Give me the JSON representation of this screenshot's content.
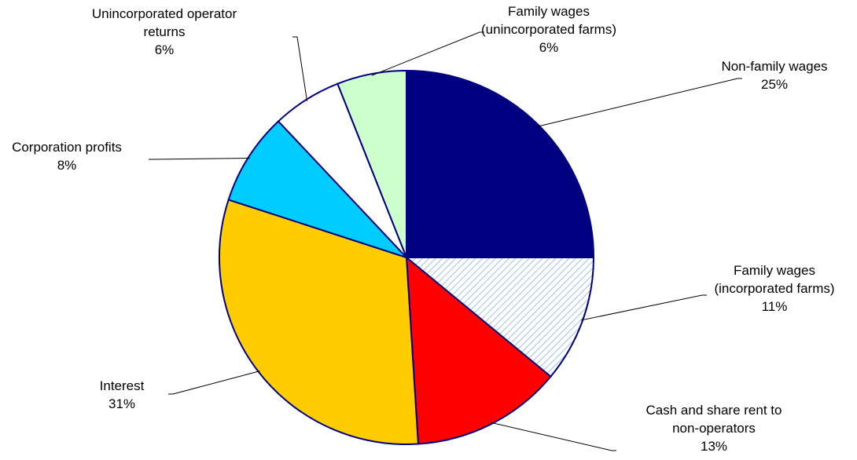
{
  "chart_data": {
    "type": "pie",
    "title": "",
    "start_angle_deg": 0,
    "direction": "clockwise",
    "slices": [
      {
        "label_lines": [
          "Non-family wages"
        ],
        "percent_label": "25%",
        "value": 25,
        "color": "#000080",
        "pattern": "solid"
      },
      {
        "label_lines": [
          "Family wages",
          "(incorporated farms)"
        ],
        "percent_label": "11%",
        "value": 11,
        "color": "#ffffff",
        "pattern_color": "#9ec2e6",
        "pattern": "diagonal-hatch"
      },
      {
        "label_lines": [
          "Cash and share rent to",
          "non-operators"
        ],
        "percent_label": "13%",
        "value": 13,
        "color": "#ff0000",
        "pattern": "solid"
      },
      {
        "label_lines": [
          "Interest"
        ],
        "percent_label": "31%",
        "value": 31,
        "color": "#ffcc00",
        "pattern": "solid"
      },
      {
        "label_lines": [
          "Corporation profits"
        ],
        "percent_label": "8%",
        "value": 8,
        "color": "#00ccff",
        "pattern": "solid"
      },
      {
        "label_lines": [
          "Unincorporated operator",
          "returns"
        ],
        "percent_label": "6%",
        "value": 6,
        "color": "#ffffff",
        "pattern": "solid"
      },
      {
        "label_lines": [
          "Family wages",
          "(unincorporated farms)"
        ],
        "percent_label": "6%",
        "value": 6,
        "color": "#ccffcc",
        "pattern": "solid"
      }
    ],
    "outline_color": "#000080",
    "leader_line_color": "#000000",
    "legend": "none",
    "labels": "outside-with-leader-lines"
  }
}
